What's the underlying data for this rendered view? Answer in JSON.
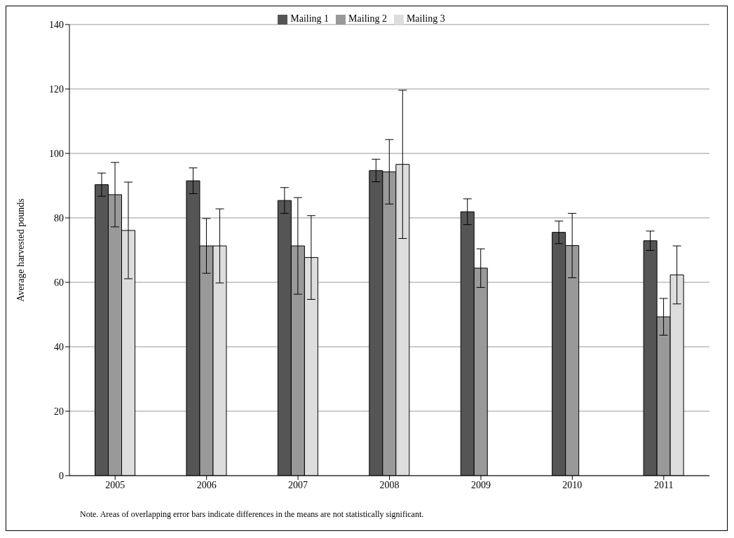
{
  "chart_data": {
    "type": "bar",
    "ylabel": "Average harvested pounds",
    "categories": [
      "2005",
      "2006",
      "2007",
      "2008",
      "2009",
      "2010",
      "2011"
    ],
    "series": [
      {
        "name": "Mailing 1",
        "color": "#555555",
        "values": [
          90.3,
          91.5,
          85.4,
          94.7,
          81.9,
          75.5,
          72.9
        ],
        "errors": [
          3.6,
          4,
          4,
          3.5,
          4,
          3.5,
          3
        ]
      },
      {
        "name": "Mailing 2",
        "color": "#999999",
        "values": [
          87.2,
          71.3,
          71.3,
          94.3,
          64.4,
          71.4,
          49.3
        ],
        "errors": [
          10,
          8.5,
          15,
          10,
          6,
          10,
          5.7
        ]
      },
      {
        "name": "Mailing 3",
        "color": "#dddddd",
        "values": [
          76.1,
          71.3,
          67.7,
          96.6,
          null,
          null,
          62.3
        ],
        "errors": [
          15,
          11.5,
          13,
          23,
          null,
          null,
          9
        ]
      }
    ],
    "ylim": [
      0,
      140
    ],
    "yticks": [
      0,
      20,
      40,
      60,
      80,
      100,
      120,
      140
    ],
    "grid": "y",
    "legend": "top",
    "annotations": [
      "Note. Areas of overlapping error bars indicate differences in the means are not statistically significant."
    ]
  }
}
